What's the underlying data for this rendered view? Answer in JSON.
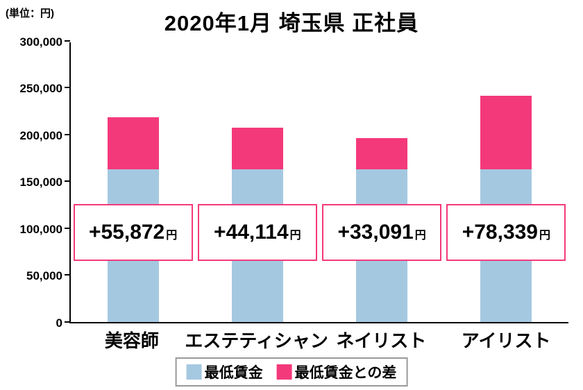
{
  "unit_label": "(単位：円)",
  "title": "2020年1月 埼玉県 正社員",
  "chart_data": {
    "type": "bar",
    "stacked": true,
    "title": "2020年1月 埼玉県 正社員",
    "unit": "円",
    "categories": [
      "美容師",
      "エステティシャン",
      "ネイリスト",
      "アイリスト"
    ],
    "series": [
      {
        "name": "最低賃金",
        "color": "#A5C8E1",
        "values": [
          162976,
          162976,
          162976,
          162976
        ]
      },
      {
        "name": "最低賃金との差",
        "color": "#F4397B",
        "values": [
          55872,
          44114,
          33091,
          78339
        ]
      }
    ],
    "totals": [
      218848,
      207090,
      196067,
      241315
    ],
    "bar_labels": [
      {
        "value": "+55,872",
        "suffix": "円"
      },
      {
        "value": "+44,114",
        "suffix": "円"
      },
      {
        "value": "+33,091",
        "suffix": "円"
      },
      {
        "value": "+78,339",
        "suffix": "円"
      }
    ],
    "ylim": [
      0,
      300000
    ],
    "ytick_interval": 50000,
    "ytick_labels": [
      "0",
      "50,000",
      "100,000",
      "150,000",
      "200,000",
      "250,000",
      "300,000"
    ],
    "grid": false,
    "legend_position": "bottom"
  },
  "legend": {
    "items": [
      {
        "label": "最低賃金",
        "color": "#A5C8E1"
      },
      {
        "label": "最低賃金との差",
        "color": "#F4397B"
      }
    ]
  }
}
